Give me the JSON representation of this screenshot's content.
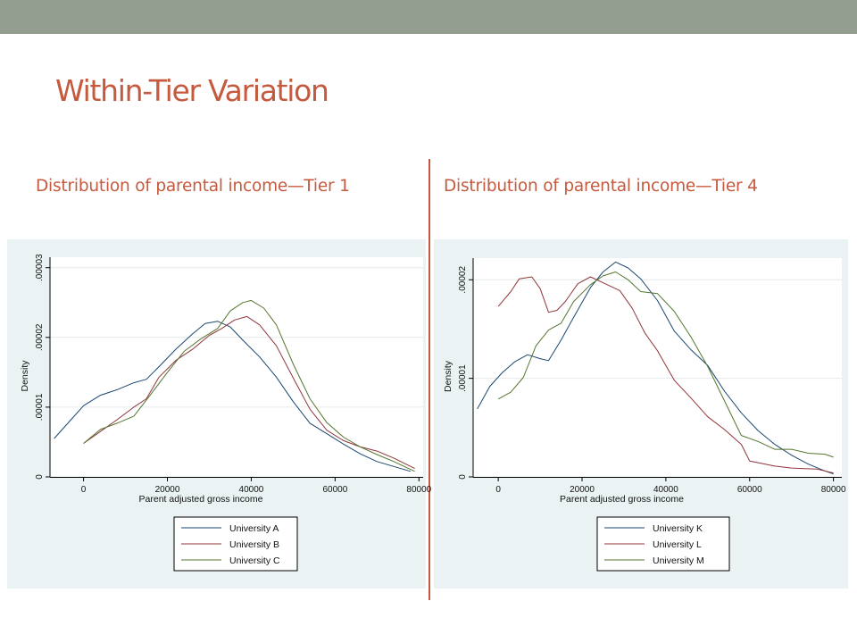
{
  "slide": {
    "title": "Within-Tier Variation",
    "heading_left": "Distribution of parental income—Tier 1",
    "heading_right": "Distribution of parental income—Tier 4"
  },
  "colors": {
    "top_bar": "#939e91",
    "accent": "#c55a3e",
    "plot_background": "#eaf2f3",
    "series": [
      "#1a476f",
      "#90353b",
      "#55752f"
    ]
  },
  "chart_data": [
    {
      "type": "line",
      "xlabel": "Parent adjusted gross income",
      "ylabel": "Density",
      "xlim": [
        -8000,
        81000
      ],
      "ylim": [
        0,
        3.15e-05
      ],
      "x_ticks": [
        0,
        20000,
        40000,
        60000,
        80000
      ],
      "x_tick_labels": [
        "0",
        "20000",
        "40000",
        "60000",
        "80000"
      ],
      "y_ticks": [
        0,
        1e-05,
        2e-05,
        3e-05
      ],
      "y_tick_labels": [
        "0",
        ".00001",
        ".00002",
        ".00003"
      ],
      "grid": true,
      "legend_position": "bottom",
      "series": [
        {
          "name": "University A",
          "points": [
            [
              -7000,
              5.5e-06
            ],
            [
              -3000,
              8.2e-06
            ],
            [
              0,
              1.02e-05
            ],
            [
              4000,
              1.17e-05
            ],
            [
              8000,
              1.25e-05
            ],
            [
              12000,
              1.35e-05
            ],
            [
              15000,
              1.4e-05
            ],
            [
              18000,
              1.58e-05
            ],
            [
              22000,
              1.83e-05
            ],
            [
              26000,
              2.05e-05
            ],
            [
              29000,
              2.2e-05
            ],
            [
              32000,
              2.23e-05
            ],
            [
              35000,
              2.15e-05
            ],
            [
              38000,
              1.96e-05
            ],
            [
              42000,
              1.72e-05
            ],
            [
              46000,
              1.43e-05
            ],
            [
              50000,
              1.08e-05
            ],
            [
              54000,
              7.7e-06
            ],
            [
              58000,
              6.2e-06
            ],
            [
              62000,
              4.7e-06
            ],
            [
              66000,
              3.3e-06
            ],
            [
              70000,
              2.2e-06
            ],
            [
              74000,
              1.5e-06
            ],
            [
              78000,
              8e-07
            ]
          ]
        },
        {
          "name": "University B",
          "points": [
            [
              0,
              4.8e-06
            ],
            [
              4000,
              6.5e-06
            ],
            [
              8000,
              8.2e-06
            ],
            [
              12000,
              1e-05
            ],
            [
              15000,
              1.12e-05
            ],
            [
              18000,
              1.43e-05
            ],
            [
              22000,
              1.67e-05
            ],
            [
              26000,
              1.83e-05
            ],
            [
              30000,
              2.03e-05
            ],
            [
              33000,
              2.13e-05
            ],
            [
              36000,
              2.25e-05
            ],
            [
              39000,
              2.3e-05
            ],
            [
              42000,
              2.18e-05
            ],
            [
              46000,
              1.88e-05
            ],
            [
              50000,
              1.42e-05
            ],
            [
              54000,
              9.7e-06
            ],
            [
              58000,
              6.7e-06
            ],
            [
              62000,
              5.2e-06
            ],
            [
              66000,
              4.3e-06
            ],
            [
              70000,
              3.7e-06
            ],
            [
              74000,
              2.7e-06
            ],
            [
              79000,
              1.2e-06
            ]
          ]
        },
        {
          "name": "University C",
          "points": [
            [
              0,
              4.8e-06
            ],
            [
              4000,
              6.8e-06
            ],
            [
              8000,
              7.7e-06
            ],
            [
              12000,
              8.7e-06
            ],
            [
              16000,
              1.18e-05
            ],
            [
              20000,
              1.5e-05
            ],
            [
              24000,
              1.8e-05
            ],
            [
              28000,
              1.98e-05
            ],
            [
              32000,
              2.13e-05
            ],
            [
              35000,
              2.38e-05
            ],
            [
              38000,
              2.5e-05
            ],
            [
              40000,
              2.53e-05
            ],
            [
              43000,
              2.42e-05
            ],
            [
              46000,
              2.18e-05
            ],
            [
              50000,
              1.62e-05
            ],
            [
              54000,
              1.12e-05
            ],
            [
              58000,
              7.8e-06
            ],
            [
              62000,
              5.7e-06
            ],
            [
              66000,
              4.3e-06
            ],
            [
              70000,
              3.2e-06
            ],
            [
              74000,
              2.2e-06
            ],
            [
              79000,
              8e-07
            ]
          ]
        }
      ]
    },
    {
      "type": "line",
      "xlabel": "Parent adjusted gross income",
      "ylabel": "Density",
      "xlim": [
        -6000,
        82000
      ],
      "ylim": [
        0,
        2.22e-05
      ],
      "x_ticks": [
        0,
        20000,
        40000,
        60000,
        80000
      ],
      "x_tick_labels": [
        "0",
        "20000",
        "40000",
        "60000",
        "80000"
      ],
      "y_ticks": [
        0,
        1e-05,
        2e-05
      ],
      "y_tick_labels": [
        "0",
        ".00001",
        ".00002"
      ],
      "grid": true,
      "legend_position": "bottom",
      "series": [
        {
          "name": "University K",
          "points": [
            [
              -5000,
              6.9e-06
            ],
            [
              -2000,
              9.2e-06
            ],
            [
              1000,
              1.06e-05
            ],
            [
              4000,
              1.17e-05
            ],
            [
              7000,
              1.24e-05
            ],
            [
              10000,
              1.2e-05
            ],
            [
              12000,
              1.18e-05
            ],
            [
              15000,
              1.39e-05
            ],
            [
              18000,
              1.62e-05
            ],
            [
              22000,
              1.92e-05
            ],
            [
              25000,
              2.08e-05
            ],
            [
              28000,
              2.18e-05
            ],
            [
              31000,
              2.12e-05
            ],
            [
              34000,
              2.01e-05
            ],
            [
              38000,
              1.79e-05
            ],
            [
              42000,
              1.48e-05
            ],
            [
              46000,
              1.29e-05
            ],
            [
              50000,
              1.13e-05
            ],
            [
              54000,
              8.7e-06
            ],
            [
              58000,
              6.5e-06
            ],
            [
              62000,
              4.7e-06
            ],
            [
              66000,
              3.3e-06
            ],
            [
              70000,
              2.2e-06
            ],
            [
              74000,
              1.3e-06
            ],
            [
              78000,
              6e-07
            ],
            [
              80000,
              3e-07
            ]
          ]
        },
        {
          "name": "University L",
          "points": [
            [
              0,
              1.73e-05
            ],
            [
              3000,
              1.88e-05
            ],
            [
              5000,
              2.01e-05
            ],
            [
              8000,
              2.03e-05
            ],
            [
              10000,
              1.91e-05
            ],
            [
              12000,
              1.67e-05
            ],
            [
              14000,
              1.69e-05
            ],
            [
              16000,
              1.78e-05
            ],
            [
              19000,
              1.96e-05
            ],
            [
              22000,
              2.03e-05
            ],
            [
              25000,
              1.97e-05
            ],
            [
              29000,
              1.89e-05
            ],
            [
              32000,
              1.71e-05
            ],
            [
              35000,
              1.46e-05
            ],
            [
              38000,
              1.28e-05
            ],
            [
              42000,
              9.8e-06
            ],
            [
              46000,
              8e-06
            ],
            [
              50000,
              6.1e-06
            ],
            [
              54000,
              4.8e-06
            ],
            [
              58000,
              3.3e-06
            ],
            [
              60000,
              1.6e-06
            ],
            [
              66000,
              1.1e-06
            ],
            [
              70000,
              9e-07
            ],
            [
              76000,
              8e-07
            ],
            [
              80000,
              4e-07
            ]
          ]
        },
        {
          "name": "University M",
          "points": [
            [
              0,
              7.9e-06
            ],
            [
              3000,
              8.6e-06
            ],
            [
              6000,
              1.01e-05
            ],
            [
              9000,
              1.33e-05
            ],
            [
              12000,
              1.49e-05
            ],
            [
              15000,
              1.56e-05
            ],
            [
              18000,
              1.78e-05
            ],
            [
              22000,
              1.95e-05
            ],
            [
              25000,
              2.04e-05
            ],
            [
              28000,
              2.08e-05
            ],
            [
              31000,
              2e-05
            ],
            [
              34000,
              1.88e-05
            ],
            [
              38000,
              1.86e-05
            ],
            [
              42000,
              1.68e-05
            ],
            [
              46000,
              1.42e-05
            ],
            [
              50000,
              1.12e-05
            ],
            [
              54000,
              7.7e-06
            ],
            [
              58000,
              4.2e-06
            ],
            [
              62000,
              3.6e-06
            ],
            [
              66000,
              2.8e-06
            ],
            [
              70000,
              2.8e-06
            ],
            [
              74000,
              2.4e-06
            ],
            [
              78000,
              2.3e-06
            ],
            [
              80000,
              2e-06
            ]
          ]
        }
      ]
    }
  ]
}
